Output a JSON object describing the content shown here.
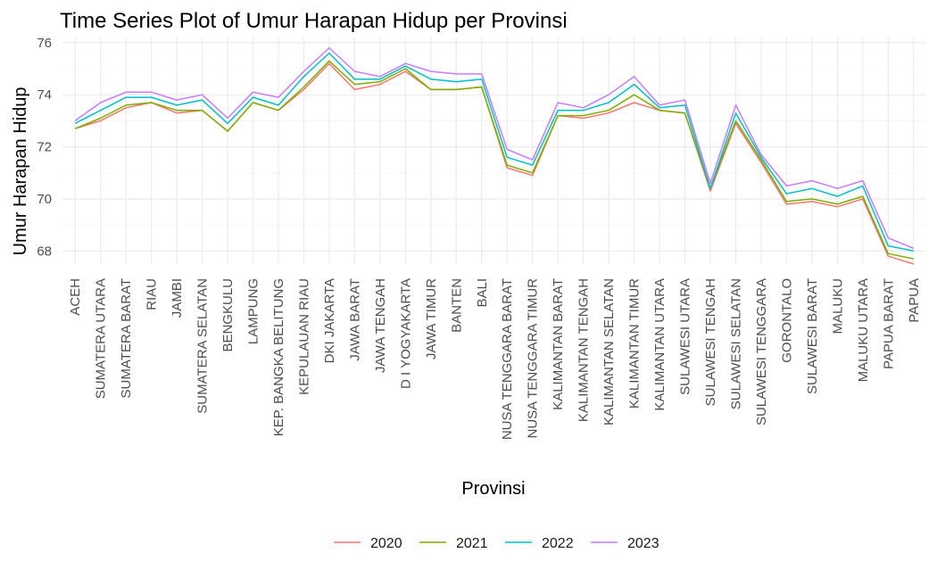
{
  "chart_data": {
    "type": "line",
    "title": "Time Series Plot of Umur Harapan Hidup per Provinsi",
    "xlabel": "Provinsi",
    "ylabel": "Umur Harapan Hidup",
    "ylim": [
      67.5,
      76.2
    ],
    "yticks": [
      68,
      70,
      72,
      74,
      76
    ],
    "grid": true,
    "legend_position": "bottom",
    "categories": [
      "ACEH",
      "SUMATERA UTARA",
      "SUMATERA BARAT",
      "RIAU",
      "JAMBI",
      "SUMATERA SELATAN",
      "BENGKULU",
      "LAMPUNG",
      "KEP. BANGKA BELITUNG",
      "KEPULAUAN RIAU",
      "DKI JAKARTA",
      "JAWA BARAT",
      "JAWA TENGAH",
      "D I YOGYAKARTA",
      "JAWA TIMUR",
      "BANTEN",
      "BALI",
      "NUSA TENGGARA BARAT",
      "NUSA TENGGARA TIMUR",
      "KALIMANTAN BARAT",
      "KALIMANTAN TENGAH",
      "KALIMANTAN SELATAN",
      "KALIMANTAN TIMUR",
      "KALIMANTAN UTARA",
      "SULAWESI UTARA",
      "SULAWESI TENGAH",
      "SULAWESI SELATAN",
      "SULAWESI TENGGARA",
      "GORONTALO",
      "SULAWESI BARAT",
      "MALUKU",
      "MALUKU UTARA",
      "PAPUA BARAT",
      "PAPUA"
    ],
    "series": [
      {
        "name": "2020",
        "color": "#F8766D",
        "values": [
          72.7,
          73.0,
          73.5,
          73.7,
          73.3,
          73.4,
          72.6,
          73.7,
          73.4,
          74.2,
          75.2,
          74.2,
          74.4,
          74.9,
          74.2,
          74.2,
          74.3,
          71.2,
          70.9,
          73.2,
          73.1,
          73.3,
          73.7,
          73.4,
          73.3,
          70.3,
          72.9,
          71.4,
          69.8,
          69.9,
          69.7,
          70.0,
          67.8,
          67.5
        ]
      },
      {
        "name": "2021",
        "color": "#7CAE00",
        "values": [
          72.7,
          73.1,
          73.6,
          73.7,
          73.4,
          73.4,
          72.6,
          73.7,
          73.4,
          74.3,
          75.3,
          74.4,
          74.5,
          75.0,
          74.2,
          74.2,
          74.3,
          71.3,
          71.0,
          73.2,
          73.2,
          73.4,
          74.0,
          73.4,
          73.3,
          70.4,
          73.0,
          71.5,
          69.9,
          70.0,
          69.8,
          70.1,
          67.9,
          67.7
        ]
      },
      {
        "name": "2022",
        "color": "#00BFC4",
        "values": [
          72.9,
          73.4,
          73.9,
          73.9,
          73.6,
          73.8,
          72.9,
          73.9,
          73.6,
          74.7,
          75.6,
          74.6,
          74.6,
          75.1,
          74.6,
          74.5,
          74.6,
          71.6,
          71.3,
          73.4,
          73.4,
          73.7,
          74.4,
          73.5,
          73.6,
          70.4,
          73.3,
          71.6,
          70.2,
          70.4,
          70.1,
          70.5,
          68.2,
          68.0
        ]
      },
      {
        "name": "2023",
        "color": "#C77CFF",
        "values": [
          73.0,
          73.7,
          74.1,
          74.1,
          73.8,
          74.0,
          73.1,
          74.1,
          73.9,
          74.9,
          75.8,
          74.9,
          74.7,
          75.2,
          74.9,
          74.8,
          74.8,
          71.9,
          71.5,
          73.7,
          73.5,
          74.0,
          74.7,
          73.6,
          73.8,
          70.6,
          73.6,
          71.7,
          70.5,
          70.7,
          70.4,
          70.7,
          68.5,
          68.1
        ]
      }
    ]
  }
}
